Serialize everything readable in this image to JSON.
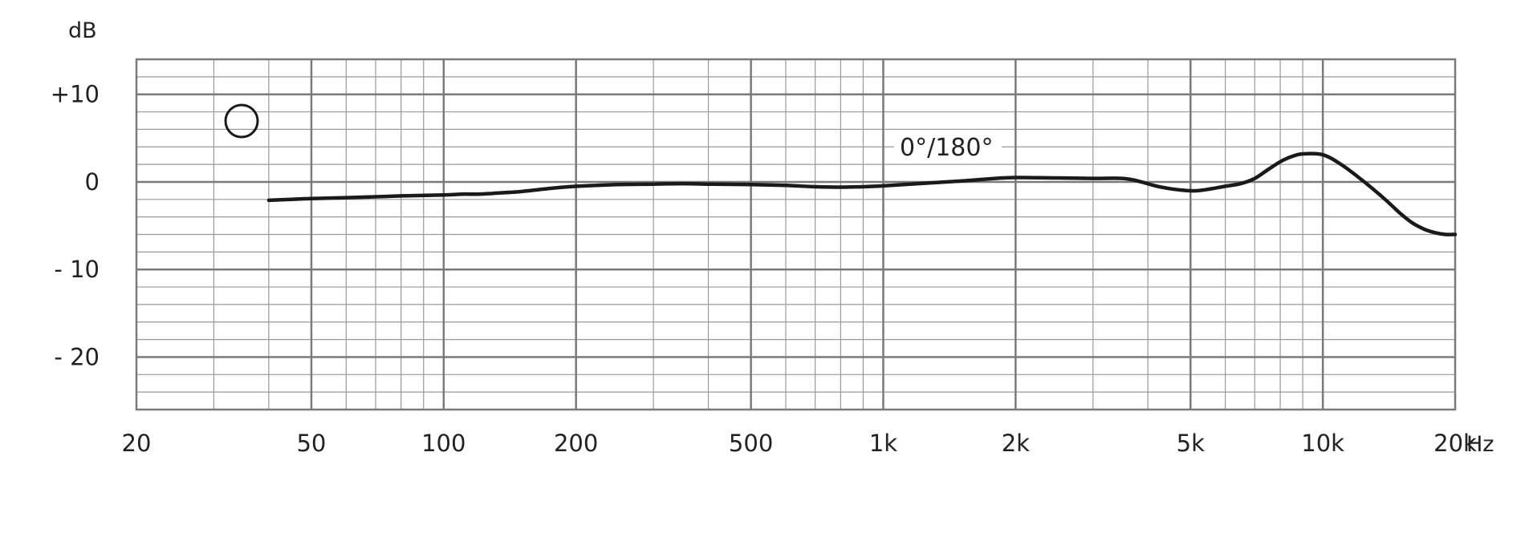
{
  "chart_data": {
    "type": "line",
    "title": "",
    "xlabel": "",
    "ylabel": "",
    "y_unit": "dB",
    "x_unit": "Hz",
    "x_scale": "log",
    "xlim": [
      20,
      20000
    ],
    "ylim": [
      -26,
      14
    ],
    "grid": true,
    "x_ticks": [
      {
        "value": 20,
        "label": "20"
      },
      {
        "value": 50,
        "label": "50"
      },
      {
        "value": 100,
        "label": "100"
      },
      {
        "value": 200,
        "label": "200"
      },
      {
        "value": 500,
        "label": "500"
      },
      {
        "value": 1000,
        "label": "1k"
      },
      {
        "value": 2000,
        "label": "2k"
      },
      {
        "value": 5000,
        "label": "5k"
      },
      {
        "value": 10000,
        "label": "10k"
      },
      {
        "value": 20000,
        "label": "20k"
      }
    ],
    "y_ticks": [
      {
        "value": 10,
        "label": "+10"
      },
      {
        "value": 0,
        "label": "0"
      },
      {
        "value": -10,
        "label": "- 10"
      },
      {
        "value": -20,
        "label": "- 20"
      }
    ],
    "pattern_icon": "omnidirectional-circle-icon",
    "series": [
      {
        "name": "0°/180°",
        "color": "#1a1a1a",
        "x": [
          40,
          50,
          60,
          70,
          80,
          100,
          110,
          120,
          130,
          150,
          170,
          200,
          250,
          300,
          350,
          400,
          500,
          600,
          700,
          800,
          900,
          1000,
          1200,
          1500,
          1800,
          2000,
          2500,
          3000,
          3500,
          3800,
          4200,
          4700,
          5200,
          6000,
          6500,
          7000,
          7500,
          8000,
          8500,
          9000,
          10000,
          11000,
          12000,
          13000,
          14000,
          15000,
          16000,
          17000,
          18000,
          19000,
          20000
        ],
        "y": [
          -2.1,
          -1.9,
          -1.8,
          -1.7,
          -1.6,
          -1.5,
          -1.4,
          -1.4,
          -1.3,
          -1.1,
          -0.8,
          -0.5,
          -0.3,
          -0.25,
          -0.2,
          -0.25,
          -0.3,
          -0.4,
          -0.55,
          -0.6,
          -0.55,
          -0.45,
          -0.2,
          0.1,
          0.4,
          0.5,
          0.45,
          0.4,
          0.4,
          0.1,
          -0.5,
          -0.9,
          -1.0,
          -0.5,
          -0.2,
          0.4,
          1.4,
          2.3,
          2.9,
          3.2,
          3.1,
          2.0,
          0.6,
          -0.8,
          -2.2,
          -3.6,
          -4.7,
          -5.4,
          -5.8,
          -6.0,
          -6.0
        ]
      }
    ]
  }
}
